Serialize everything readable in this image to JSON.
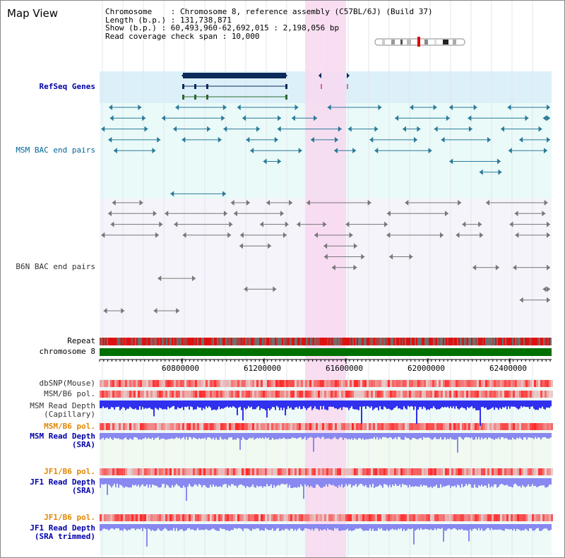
{
  "window": {
    "title": "Map View"
  },
  "info": {
    "chromosome_label": "Chromosome    :",
    "chromosome_value": "Chromosome 8, reference assembly (C57BL/6J) (Build 37)",
    "length_label": "Length (b.p.) :",
    "length_value": "131,738,871",
    "show_label": "Show (b.p.) :",
    "show_value": "60,493,960-62,692,015 : 2,198,056 bp",
    "coverage_label": "Read coverage check span :",
    "coverage_value": "10,000"
  },
  "tracks": {
    "refseq": "RefSeq Genes",
    "msm_bac": "MSM BAC end pairs",
    "b6n_bac": "B6N BAC end pairs",
    "repeat": "Repeat",
    "chromosome": "chromosome 8",
    "dbsnp": "dbSNP(Mouse)",
    "msm_b6_pol_1": "MSM/B6 pol.",
    "msm_read_depth_cap": "MSM Read Depth\n(Capillary)",
    "msm_b6_pol_2": "MSM/B6 pol.",
    "msm_read_depth_sra": "MSM Read Depth\n(SRA)",
    "jf1_b6_pol_1": "JF1/B6 pol.",
    "jf1_read_depth_sra": "JF1 Read Depth\n(SRA)",
    "jf1_b6_pol_2": "JF1/B6 pol.",
    "jf1_read_depth_trim": "JF1 Read Depth\n(SRA trimmed)"
  },
  "axis": {
    "ticks": [
      "60800000",
      "61200000",
      "61600000",
      "62000000",
      "62400000"
    ]
  },
  "colors": {
    "refseq_bg": "#dcf0fa",
    "bac_bg": "#eafaf8",
    "highlight": "#f8d8f0",
    "chromosome_bar": "#007000",
    "depth_blue": "#3030ee",
    "depth_light": "#8888f0",
    "pol_red": "#e03030"
  }
}
